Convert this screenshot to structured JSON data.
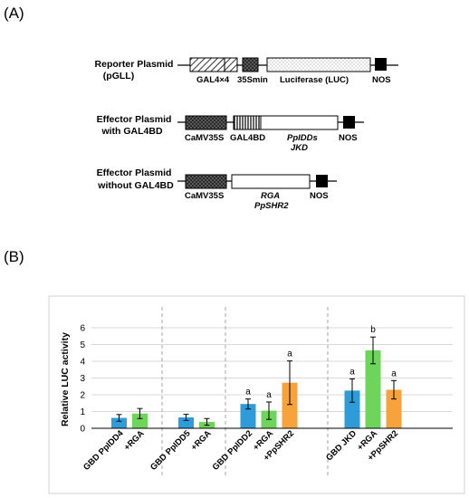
{
  "panels": {
    "a_label": "(A)",
    "b_label": "(B)"
  },
  "plasmids": {
    "reporter": {
      "name_line1": "Reporter Plasmid",
      "name_line2": "(pGLL)",
      "gal4_label": "GAL4×4",
      "min35s_label": "35Smin",
      "luc_label": "Luciferase (LUC)",
      "nos_label": "NOS"
    },
    "effector_gal4bd": {
      "name_line1": "Effector Plasmid",
      "name_line2": "with GAL4BD",
      "camv_label": "CaMV35S",
      "gal4bd_label": "GAL4BD",
      "gene_line1": "PpIDDs",
      "gene_line2": "JKD",
      "nos_label": "NOS"
    },
    "effector_no_gal4bd": {
      "name_line1": "Effector Plasmid",
      "name_line2": "without GAL4BD",
      "camv_label": "CaMV35S",
      "gene_line1": "RGA",
      "gene_line2": "PpSHR2",
      "nos_label": "NOS"
    }
  },
  "colors": {
    "blue": "#2e9cd8",
    "green": "#6dd65a",
    "orange": "#f7a23b",
    "grid": "#d9d9d9",
    "divider": "#a6a6a6"
  },
  "chart_data": {
    "type": "bar",
    "ylabel": "Relative LUC activity",
    "ylim": [
      0,
      6
    ],
    "yticks": [
      "0",
      "1",
      "2",
      "3",
      "4",
      "5",
      "6"
    ],
    "grid": true,
    "groups": [
      {
        "bars": [
          {
            "label": "GBD PpIDD4",
            "value": 0.62,
            "error": 0.2,
            "color": "blue",
            "sig": ""
          },
          {
            "label": "+RGA",
            "value": 0.88,
            "error": 0.3,
            "color": "green",
            "sig": ""
          }
        ]
      },
      {
        "bars": [
          {
            "label": "GBD PpIDD5",
            "value": 0.65,
            "error": 0.18,
            "color": "blue",
            "sig": ""
          },
          {
            "label": "+RGA",
            "value": 0.38,
            "error": 0.2,
            "color": "green",
            "sig": ""
          }
        ]
      },
      {
        "bars": [
          {
            "label": "GBD PpIDD2",
            "value": 1.45,
            "error": 0.3,
            "color": "blue",
            "sig": "a"
          },
          {
            "label": "+RGA",
            "value": 1.05,
            "error": 0.52,
            "color": "green",
            "sig": "a"
          },
          {
            "label": "+PpSHR2",
            "value": 2.72,
            "error": 1.3,
            "color": "orange",
            "sig": "a"
          }
        ]
      },
      {
        "bars": [
          {
            "label": "GBD JKD",
            "value": 2.25,
            "error": 0.7,
            "color": "blue",
            "sig": "a"
          },
          {
            "label": "+RGA",
            "value": 4.65,
            "error": 0.8,
            "color": "green",
            "sig": "b"
          },
          {
            "label": "+PpSHR2",
            "value": 2.3,
            "error": 0.55,
            "color": "orange",
            "sig": "a"
          }
        ]
      }
    ]
  }
}
